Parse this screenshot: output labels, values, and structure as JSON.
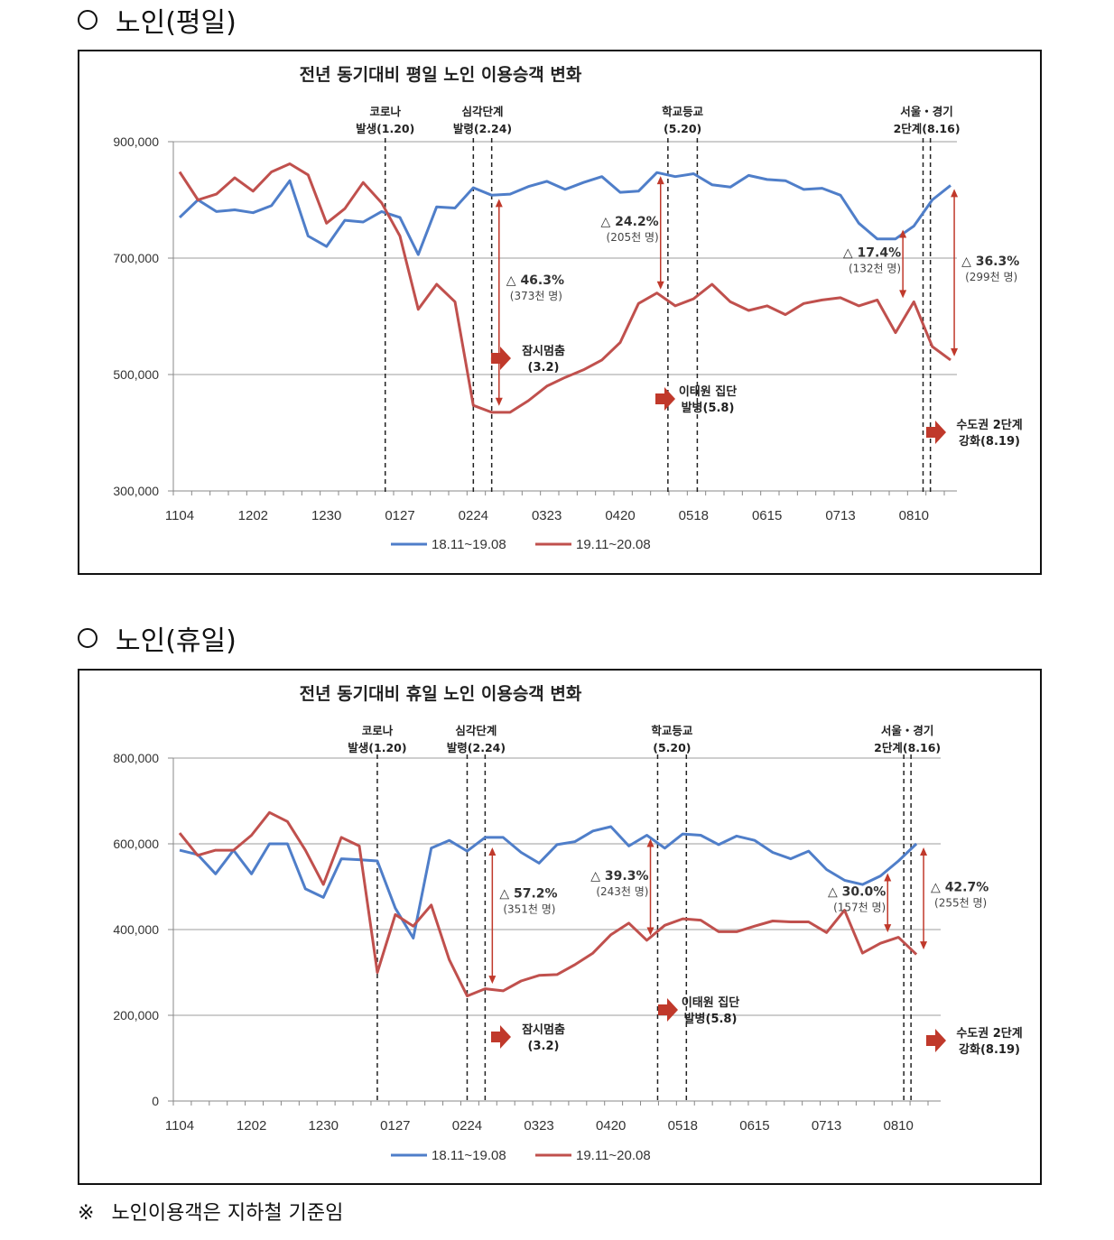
{
  "sections": [
    {
      "title": "노인(평일)"
    },
    {
      "title": "노인(휴일)"
    }
  ],
  "footnote": {
    "mark": "※",
    "text": "노인이용객은 지하철 기준임"
  },
  "chart_data": [
    {
      "type": "line",
      "title": "전년 동기대비 평일 노인 이용승객 변화",
      "xlabel": "",
      "ylabel": "",
      "ylim": [
        300000,
        900000
      ],
      "yticks": [
        "900,000",
        "700,000",
        "500,000",
        "300,000"
      ],
      "ytick_values": [
        900000,
        700000,
        500000,
        300000
      ],
      "grid": true,
      "legend": "bottom",
      "xtick_labels": [
        "1104",
        "1202",
        "1230",
        "0127",
        "0224",
        "0323",
        "0420",
        "0518",
        "0615",
        "0713",
        "0810"
      ],
      "xtick_index": [
        0,
        4,
        8,
        12,
        16,
        20,
        24,
        28,
        32,
        36,
        40
      ],
      "series": [
        {
          "name": "18.11~19.08",
          "color": "#4F7EC9",
          "values": [
            770000,
            800000,
            780000,
            783000,
            778000,
            790000,
            833000,
            738000,
            720000,
            765000,
            762000,
            780000,
            770000,
            706000,
            788000,
            786000,
            821000,
            808000,
            810000,
            823000,
            832000,
            818000,
            830000,
            840000,
            813000,
            815000,
            847000,
            840000,
            845000,
            826000,
            822000,
            842000,
            835000,
            833000,
            818000,
            820000,
            808000,
            760000,
            733000,
            733000,
            755000,
            800000,
            825000
          ]
        },
        {
          "name": "19.11~20.08",
          "color": "#C0504D",
          "values": [
            848000,
            800000,
            810000,
            838000,
            815000,
            848000,
            862000,
            843000,
            760000,
            785000,
            830000,
            795000,
            738000,
            612000,
            655000,
            625000,
            447000,
            435000,
            435000,
            455000,
            480000,
            495000,
            508000,
            525000,
            555000,
            622000,
            640000,
            618000,
            630000,
            655000,
            625000,
            610000,
            618000,
            603000,
            622000,
            628000,
            632000,
            618000,
            628000,
            572000,
            625000,
            548000,
            525000
          ]
        }
      ],
      "events": [
        {
          "label_lines": [
            "코로나",
            "발생(1.20)"
          ],
          "positions": [
            11.2
          ]
        },
        {
          "label_lines": [
            "심각단계",
            "발령(2.24)"
          ],
          "positions": [
            16.0,
            17.0
          ]
        },
        {
          "label_lines": [
            "학교등교",
            "(5.20)"
          ],
          "positions": [
            26.6,
            28.2
          ]
        },
        {
          "label_lines": [
            "서울・경기",
            "2단계(8.16)"
          ],
          "positions": [
            40.5,
            40.9
          ]
        }
      ],
      "annotations": [
        {
          "pct": "△ 46.3%",
          "count": "(373천 명)",
          "x": 17.4,
          "y_top": 808000,
          "y_bottom": 440000
        },
        {
          "pct": "△ 24.2%",
          "count": "(205천 명)",
          "x": 26.2,
          "y_top": 847000,
          "y_bottom": 640000
        },
        {
          "pct": "△ 17.4%",
          "count": "(132천 명)",
          "x": 39.4,
          "y_top": 755000,
          "y_bottom": 625000
        },
        {
          "pct": "△ 36.3%",
          "count": "(299천 명)",
          "x": 42.2,
          "y_top": 825000,
          "y_bottom": 525000
        }
      ],
      "arrow_notes": [
        {
          "lines": [
            "잠시멈춤",
            "(3.2)"
          ]
        },
        {
          "lines": [
            "이태원 집단",
            "발병(5.8)"
          ]
        },
        {
          "lines": [
            "수도권 2단계",
            "강화(8.19)"
          ]
        }
      ]
    },
    {
      "type": "line",
      "title": "전년 동기대비 휴일 노인 이용승객 변화",
      "xlabel": "",
      "ylabel": "",
      "ylim": [
        0,
        800000
      ],
      "yticks": [
        "800,000",
        "600,000",
        "400,000",
        "200,000",
        "0"
      ],
      "ytick_values": [
        800000,
        600000,
        400000,
        200000,
        0
      ],
      "grid": true,
      "legend": "bottom",
      "xtick_labels": [
        "1104",
        "1202",
        "1230",
        "0127",
        "0224",
        "0323",
        "0420",
        "0518",
        "0615",
        "0713",
        "0810"
      ],
      "xtick_index": [
        0,
        4,
        8,
        12,
        16,
        20,
        24,
        28,
        32,
        36,
        40
      ],
      "series": [
        {
          "name": "18.11~19.08",
          "color": "#4F7EC9",
          "values": [
            585000,
            575000,
            530000,
            585000,
            530000,
            600000,
            600000,
            495000,
            475000,
            565000,
            563000,
            560000,
            450000,
            380000,
            590000,
            608000,
            583000,
            615000,
            615000,
            580000,
            555000,
            598000,
            605000,
            630000,
            640000,
            595000,
            620000,
            590000,
            623000,
            620000,
            598000,
            618000,
            608000,
            580000,
            565000,
            583000,
            540000,
            515000,
            505000,
            525000,
            560000,
            600000
          ]
        },
        {
          "name": "19.11~20.08",
          "color": "#C0504D",
          "values": [
            625000,
            573000,
            585000,
            585000,
            620000,
            673000,
            652000,
            585000,
            505000,
            615000,
            595000,
            300000,
            435000,
            408000,
            457000,
            330000,
            245000,
            262000,
            257000,
            280000,
            293000,
            295000,
            318000,
            345000,
            388000,
            415000,
            375000,
            410000,
            425000,
            422000,
            395000,
            395000,
            408000,
            420000,
            418000,
            418000,
            393000,
            445000,
            345000,
            368000,
            382000,
            342000
          ]
        }
      ],
      "events": [
        {
          "label_lines": [
            "코로나",
            "발생(1.20)"
          ],
          "positions": [
            11.0
          ]
        },
        {
          "label_lines": [
            "심각단계",
            "발령(2.24)"
          ],
          "positions": [
            16.0,
            17.0
          ]
        },
        {
          "label_lines": [
            "학교등교",
            "(5.20)"
          ],
          "positions": [
            26.6,
            28.2
          ]
        },
        {
          "label_lines": [
            "서울・경기",
            "2단계(8.16)"
          ],
          "positions": [
            40.3,
            40.7
          ]
        }
      ],
      "annotations": [
        {
          "pct": "△ 57.2%",
          "count": "(351천 명)",
          "x": 17.4,
          "y_top": 600000,
          "y_bottom": 265000
        },
        {
          "pct": "△ 39.3%",
          "count": "(243천 명)",
          "x": 26.2,
          "y_top": 620000,
          "y_bottom": 378000
        },
        {
          "pct": "△ 30.0%",
          "count": "(157천 명)",
          "x": 39.4,
          "y_top": 540000,
          "y_bottom": 385000
        },
        {
          "pct": "△ 42.7%",
          "count": "(255천 명)",
          "x": 41.4,
          "y_top": 600000,
          "y_bottom": 345000
        }
      ],
      "arrow_notes": [
        {
          "lines": [
            "잠시멈춤",
            "(3.2)"
          ]
        },
        {
          "lines": [
            "이태원 집단",
            "발병(5.8)"
          ]
        },
        {
          "lines": [
            "수도권 2단계",
            "강화(8.19)"
          ]
        }
      ]
    }
  ]
}
